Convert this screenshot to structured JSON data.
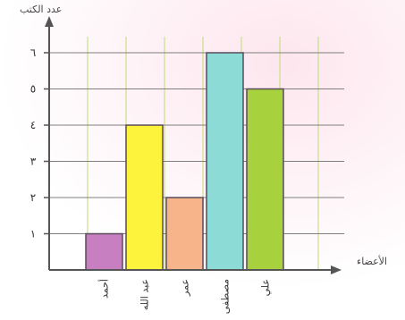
{
  "chart_data": {
    "type": "bar",
    "ylabel": "عدد الكتب",
    "xlabel": "الأعضاء",
    "categories": [
      "أحمد",
      "عبد الله",
      "عمر",
      "مصطفى",
      "علي"
    ],
    "values": [
      1,
      4,
      2,
      6,
      5
    ],
    "y_ticks": [
      "١",
      "٢",
      "٣",
      "٤",
      "٥",
      "٦"
    ],
    "ylim": [
      0,
      6
    ],
    "grid": true,
    "colors": {
      "bars": [
        "#c77fc2",
        "#fdf33c",
        "#f7b38a",
        "#8ddbd6",
        "#a7d23d"
      ],
      "grid_horizontal": "#7f7f7f",
      "grid_vertical": "#c8df8a",
      "axis": "#555555",
      "background_glow": "#fde6ee"
    }
  }
}
